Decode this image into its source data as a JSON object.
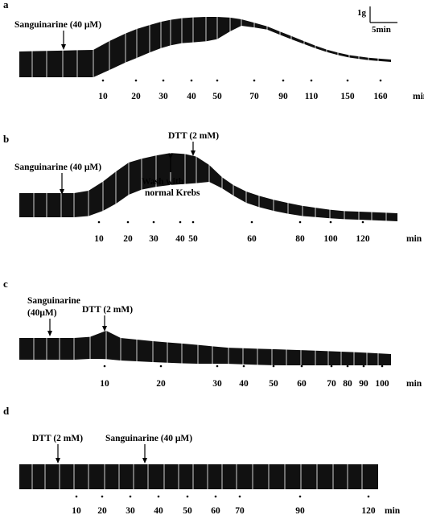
{
  "figure": {
    "scale_bar": {
      "force": "1g",
      "time": "5min"
    },
    "time_unit": "min"
  },
  "chart_data": [
    {
      "type": "line",
      "panel": "a",
      "xlabel": "min",
      "tick_labels": [
        "10",
        "20",
        "30",
        "40",
        "50",
        "70",
        "90",
        "110",
        "150",
        "160"
      ],
      "annotations": [
        {
          "text": "Sanguinarine (40 μM)",
          "arrow": true
        }
      ]
    },
    {
      "type": "line",
      "panel": "b",
      "xlabel": "min",
      "tick_labels": [
        "10",
        "20",
        "30",
        "40",
        "50",
        "60",
        "80",
        "100",
        "120"
      ],
      "annotations": [
        {
          "text": "Sanguinarine (40 μM)",
          "arrow": true
        },
        {
          "text": "DTT (2 mM)",
          "arrow": true
        },
        {
          "text": "Wash with",
          "arrow": true
        },
        {
          "text": "normal Krebs",
          "arrow": false
        }
      ]
    },
    {
      "type": "line",
      "panel": "c",
      "xlabel": "min",
      "tick_labels": [
        "10",
        "20",
        "30",
        "40",
        "50",
        "60",
        "70",
        "80",
        "90",
        "100"
      ],
      "annotations": [
        {
          "text": "Sanguinarine",
          "arrow": false
        },
        {
          "text": "(40μM)",
          "arrow": true
        },
        {
          "text": "DTT (2 mM)",
          "arrow": true
        }
      ]
    },
    {
      "type": "line",
      "panel": "d",
      "xlabel": "min",
      "tick_labels": [
        "10",
        "20",
        "30",
        "40",
        "50",
        "60",
        "70",
        "90",
        "120"
      ],
      "annotations": [
        {
          "text": "DTT (2 mM)",
          "arrow": true
        },
        {
          "text": "Sanguinarine (40 μM)",
          "arrow": true
        }
      ]
    }
  ]
}
